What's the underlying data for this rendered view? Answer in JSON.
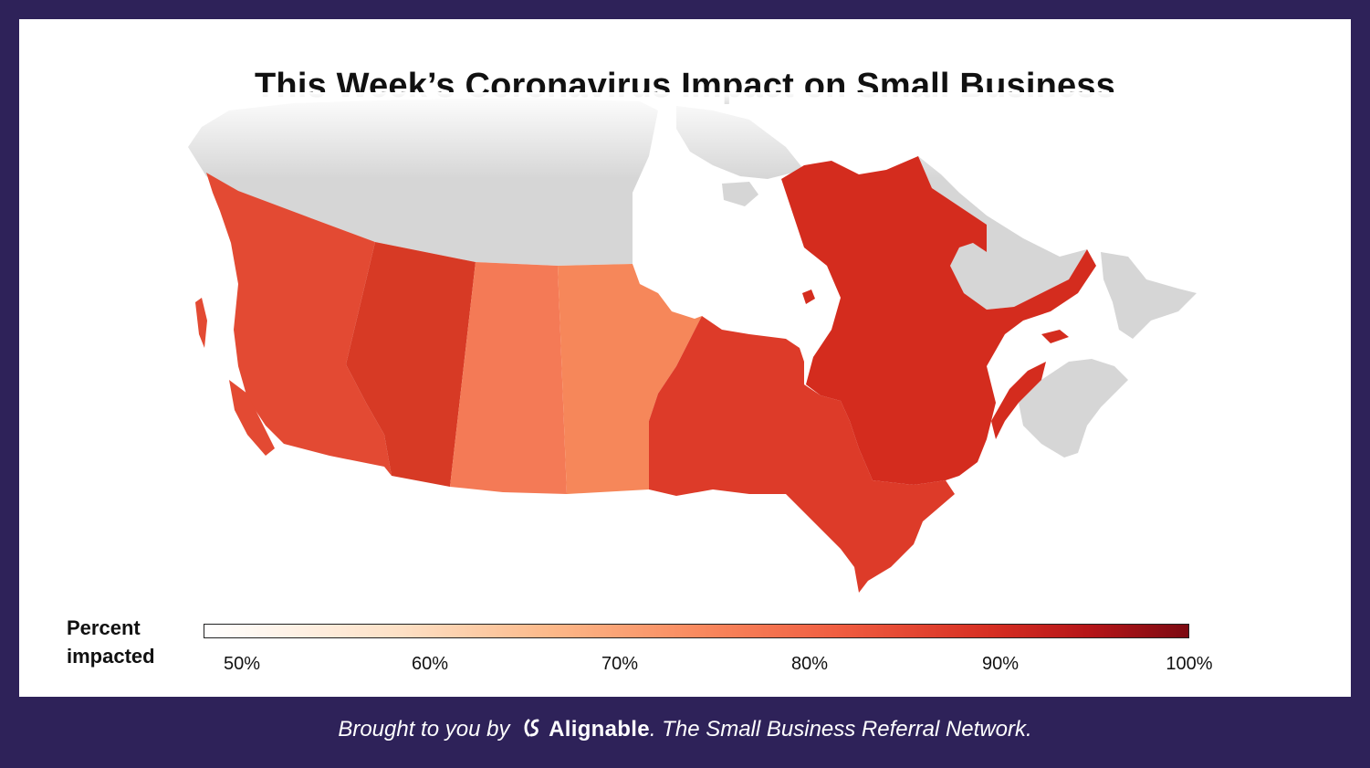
{
  "title": "This Week’s Coronavirus Impact on Small Business",
  "legend": {
    "label_line1": "Percent",
    "label_line2": "impacted",
    "ticks": [
      "50%",
      "60%",
      "70%",
      "80%",
      "90%",
      "100%"
    ],
    "range": [
      48,
      100
    ],
    "colors": [
      "#ffffff",
      "#fde0c5",
      "#fcb98a",
      "#f98a5f",
      "#ef5b3f",
      "#d62e22",
      "#b51518",
      "#7c0a12"
    ]
  },
  "map_data": {
    "regions": [
      {
        "name": "British Columbia",
        "color": "#e34a33"
      },
      {
        "name": "Alberta",
        "color": "#d73a25"
      },
      {
        "name": "Saskatchewan",
        "color": "#f47a56"
      },
      {
        "name": "Manitoba",
        "color": "#f6875a"
      },
      {
        "name": "Ontario",
        "color": "#dd3b29"
      },
      {
        "name": "Quebec",
        "color": "#d42c1e"
      },
      {
        "name": "No data",
        "color": "#d6d6d6"
      }
    ]
  },
  "footer": {
    "prefix": "Brought to you by",
    "brand": "Alignable",
    "suffix": ". The Small Business Referral Network."
  }
}
